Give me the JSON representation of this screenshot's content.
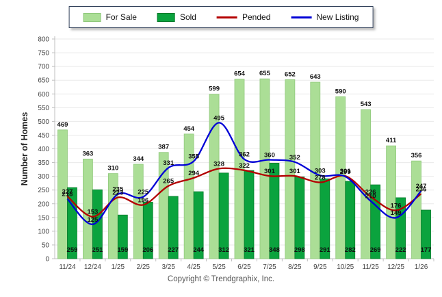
{
  "legend": {
    "items": [
      {
        "label": "For Sale",
        "type": "swatch",
        "color": "#ABDE96",
        "border": "#8FC87B"
      },
      {
        "label": "Sold",
        "type": "swatch",
        "color": "#0BA33E",
        "border": "#067A2A"
      },
      {
        "label": "Pended",
        "type": "line",
        "color": "#B30000"
      },
      {
        "label": "New Listing",
        "type": "line",
        "color": "#0000D6"
      }
    ]
  },
  "footer": {
    "text": "Copyright © Trendgraphix, Inc."
  },
  "chart_data": {
    "type": "bar",
    "subtype": "grouped bars with smoothed overlay lines",
    "categories": [
      "11/24",
      "12/24",
      "1/25",
      "2/25",
      "3/25",
      "4/25",
      "5/25",
      "6/25",
      "7/25",
      "8/25",
      "9/25",
      "10/25",
      "11/25",
      "12/25",
      "1/26"
    ],
    "series": [
      {
        "name": "For Sale",
        "type": "bar",
        "color": "#ABDE96",
        "border": "#8FC87B",
        "values": [
          469,
          363,
          310,
          344,
          387,
          454,
          599,
          654,
          655,
          652,
          643,
          590,
          543,
          411,
          356
        ]
      },
      {
        "name": "Sold",
        "type": "bar",
        "color": "#0BA33E",
        "border": "#067A2A",
        "values": [
          259,
          251,
          159,
          206,
          227,
          244,
          312,
          321,
          348,
          298,
          291,
          282,
          269,
          222,
          177
        ]
      },
      {
        "name": "Pended",
        "type": "line",
        "color": "#B30000",
        "values": [
          227,
          153,
          223,
          196,
          265,
          294,
          328,
          322,
          301,
          301,
          278,
          301,
          226,
          176,
          236
        ]
      },
      {
        "name": "New Listing",
        "type": "line",
        "color": "#0000D6",
        "values": [
          218,
          125,
          235,
          225,
          331,
          355,
          495,
          362,
          360,
          352,
          303,
          299,
          210,
          149,
          247
        ]
      }
    ],
    "title": "",
    "xlabel": "",
    "ylabel": "Number of Homes",
    "ylim": [
      0,
      800
    ],
    "ytick_step": 50,
    "grid": true,
    "legend_position": "top-center"
  }
}
